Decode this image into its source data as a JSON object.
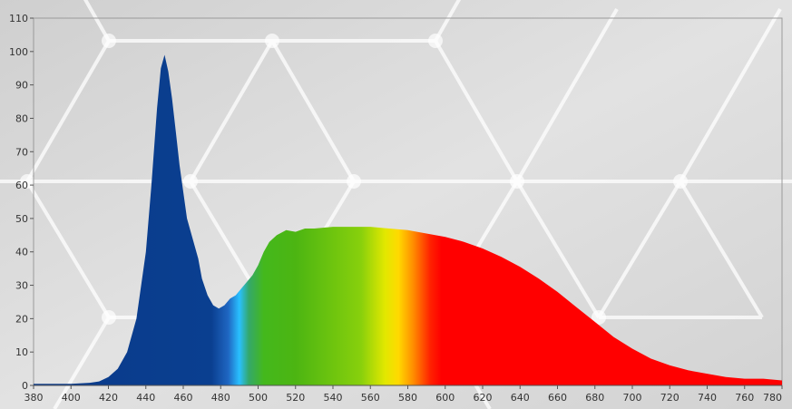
{
  "chart_data": {
    "type": "area",
    "title": "",
    "xlabel": "",
    "ylabel": "",
    "xlim": [
      380,
      780
    ],
    "ylim": [
      0,
      110
    ],
    "x_ticks": [
      "380",
      "400",
      "420",
      "440",
      "460",
      "480",
      "500",
      "520",
      "540",
      "560",
      "580",
      "600",
      "620",
      "640",
      "660",
      "680",
      "700",
      "720",
      "740",
      "760",
      "780"
    ],
    "y_ticks": [
      "0",
      "10",
      "20",
      "30",
      "40",
      "50",
      "60",
      "70",
      "80",
      "90",
      "100",
      "110"
    ],
    "x_tick_values": [
      380,
      400,
      420,
      440,
      460,
      480,
      500,
      520,
      540,
      560,
      580,
      600,
      620,
      640,
      660,
      680,
      700,
      720,
      740,
      760,
      780
    ],
    "y_tick_values": [
      0,
      10,
      20,
      30,
      40,
      50,
      60,
      70,
      80,
      90,
      100,
      110
    ],
    "grid": false,
    "series": [
      {
        "x": [
          380,
          390,
          400,
          410,
          415,
          420,
          425,
          430,
          435,
          440,
          443,
          446,
          448,
          450,
          452,
          454,
          456,
          458,
          460,
          462,
          465,
          468,
          470,
          473,
          476,
          479,
          482,
          485,
          488,
          491,
          494,
          497,
          500,
          503,
          506,
          510,
          515,
          520,
          525,
          530,
          540,
          550,
          560,
          570,
          580,
          590,
          600,
          610,
          620,
          630,
          640,
          650,
          660,
          670,
          680,
          690,
          700,
          710,
          720,
          730,
          740,
          750,
          760,
          770,
          780
        ],
        "y": [
          0.5,
          0.5,
          0.5,
          0.8,
          1.2,
          2.5,
          5,
          10,
          20,
          40,
          60,
          83,
          95,
          99,
          94,
          86,
          76,
          66,
          58,
          50,
          44,
          38,
          32,
          27,
          24,
          23,
          24,
          26,
          27,
          29,
          31,
          33,
          36,
          40,
          43,
          45,
          46.5,
          46,
          47,
          47,
          47.5,
          47.5,
          47.5,
          47,
          46.5,
          45.5,
          44.5,
          43,
          41,
          38.5,
          35.5,
          32,
          28,
          23.5,
          19,
          14.5,
          11,
          8,
          6,
          4.5,
          3.5,
          2.5,
          2,
          2,
          1.5
        ]
      }
    ],
    "fill_spectrum_stops": [
      {
        "nm": 380,
        "color": "#0a3a8a"
      },
      {
        "nm": 475,
        "color": "#0a3f90"
      },
      {
        "nm": 484,
        "color": "#1f66c2"
      },
      {
        "nm": 490,
        "color": "#29c0ff"
      },
      {
        "nm": 495,
        "color": "#34a86b"
      },
      {
        "nm": 503,
        "color": "#44b81c"
      },
      {
        "nm": 520,
        "color": "#4cb512"
      },
      {
        "nm": 555,
        "color": "#88d00c"
      },
      {
        "nm": 568,
        "color": "#e3e800"
      },
      {
        "nm": 575,
        "color": "#ffd900"
      },
      {
        "nm": 583,
        "color": "#ff8c00"
      },
      {
        "nm": 592,
        "color": "#ff2200"
      },
      {
        "nm": 598,
        "color": "#ff0000"
      },
      {
        "nm": 780,
        "color": "#ff0000"
      }
    ],
    "colors": {
      "background": "#d9d9d9",
      "plot_border": "#9a9a9a",
      "axis": "#555555",
      "tick_text": "#333333"
    }
  }
}
